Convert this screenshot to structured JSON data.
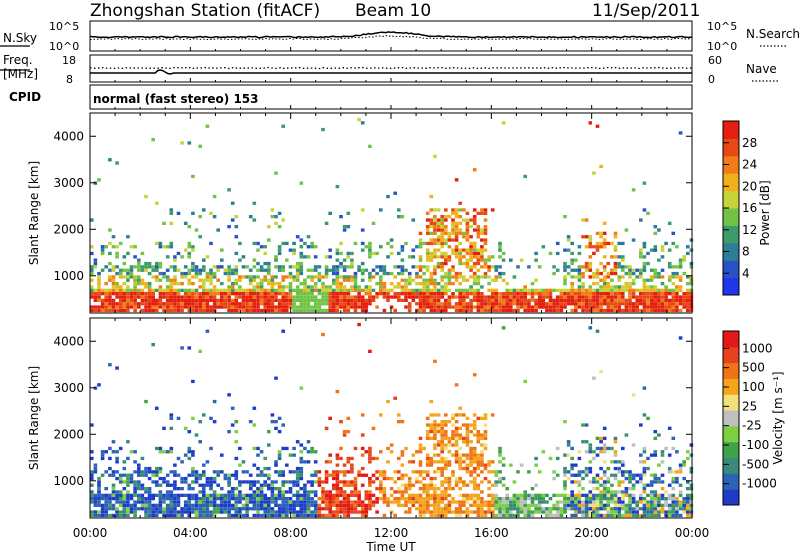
{
  "header": {
    "station": "Zhongshan Station (fitACF)",
    "beam": "Beam 10",
    "date": "11/Sep/2011"
  },
  "aux": {
    "nsky_label": "N.Sky",
    "nsky_ticks": [
      "10^5",
      "10^0"
    ],
    "nsearch_label": "N.Search",
    "nsearch_ticks": [
      "10^5",
      "10^0"
    ],
    "freq_label_1": "Freq.",
    "freq_label_2": "[MHz]",
    "freq_ticks": [
      "18",
      "8"
    ],
    "nave_label": "Nave",
    "nave_ticks": [
      "60",
      "0"
    ],
    "cpid_label": "CPID",
    "cpid_text": "normal (fast stereo) 153"
  },
  "chart_data": [
    {
      "type": "heatmap",
      "name": "power",
      "ylabel": "Slant Range [km]",
      "yticks": [
        "1000",
        "2000",
        "3000",
        "4000"
      ],
      "ylim": [
        200,
        4500
      ],
      "colorbar_label": "Power [dB]",
      "colorbar_ticks": [
        "4",
        "8",
        "12",
        "16",
        "20",
        "24",
        "28"
      ],
      "colorbar_colors": [
        "#1f37e8",
        "#2a52c8",
        "#2e7d96",
        "#3d9a6a",
        "#72c246",
        "#c6d43a",
        "#f2b01d",
        "#f07d17",
        "#e64913",
        "#e41f10"
      ]
    },
    {
      "type": "heatmap",
      "name": "velocity",
      "ylabel": "Slant Range [km]",
      "yticks": [
        "1000",
        "2000",
        "3000",
        "4000"
      ],
      "ylim": [
        200,
        4500
      ],
      "colorbar_label": "Velocity [m s⁻¹]",
      "colorbar_ticks": [
        "1000",
        "500",
        "100",
        "25",
        "-25",
        "-100",
        "-500",
        "-1000"
      ],
      "colorbar_colors": [
        "#1f3cc8",
        "#2c62b8",
        "#3a8a7a",
        "#3fa34a",
        "#7cd042",
        "#bfbfbf",
        "#f2e07a",
        "#f4a51c",
        "#ef7417",
        "#e8421a",
        "#e41818"
      ]
    }
  ],
  "xaxis": {
    "ticks": [
      "00:00",
      "04:00",
      "08:00",
      "12:00",
      "16:00",
      "20:00",
      "00:00"
    ],
    "label": "Time UT",
    "range_hours": [
      0,
      24
    ]
  }
}
